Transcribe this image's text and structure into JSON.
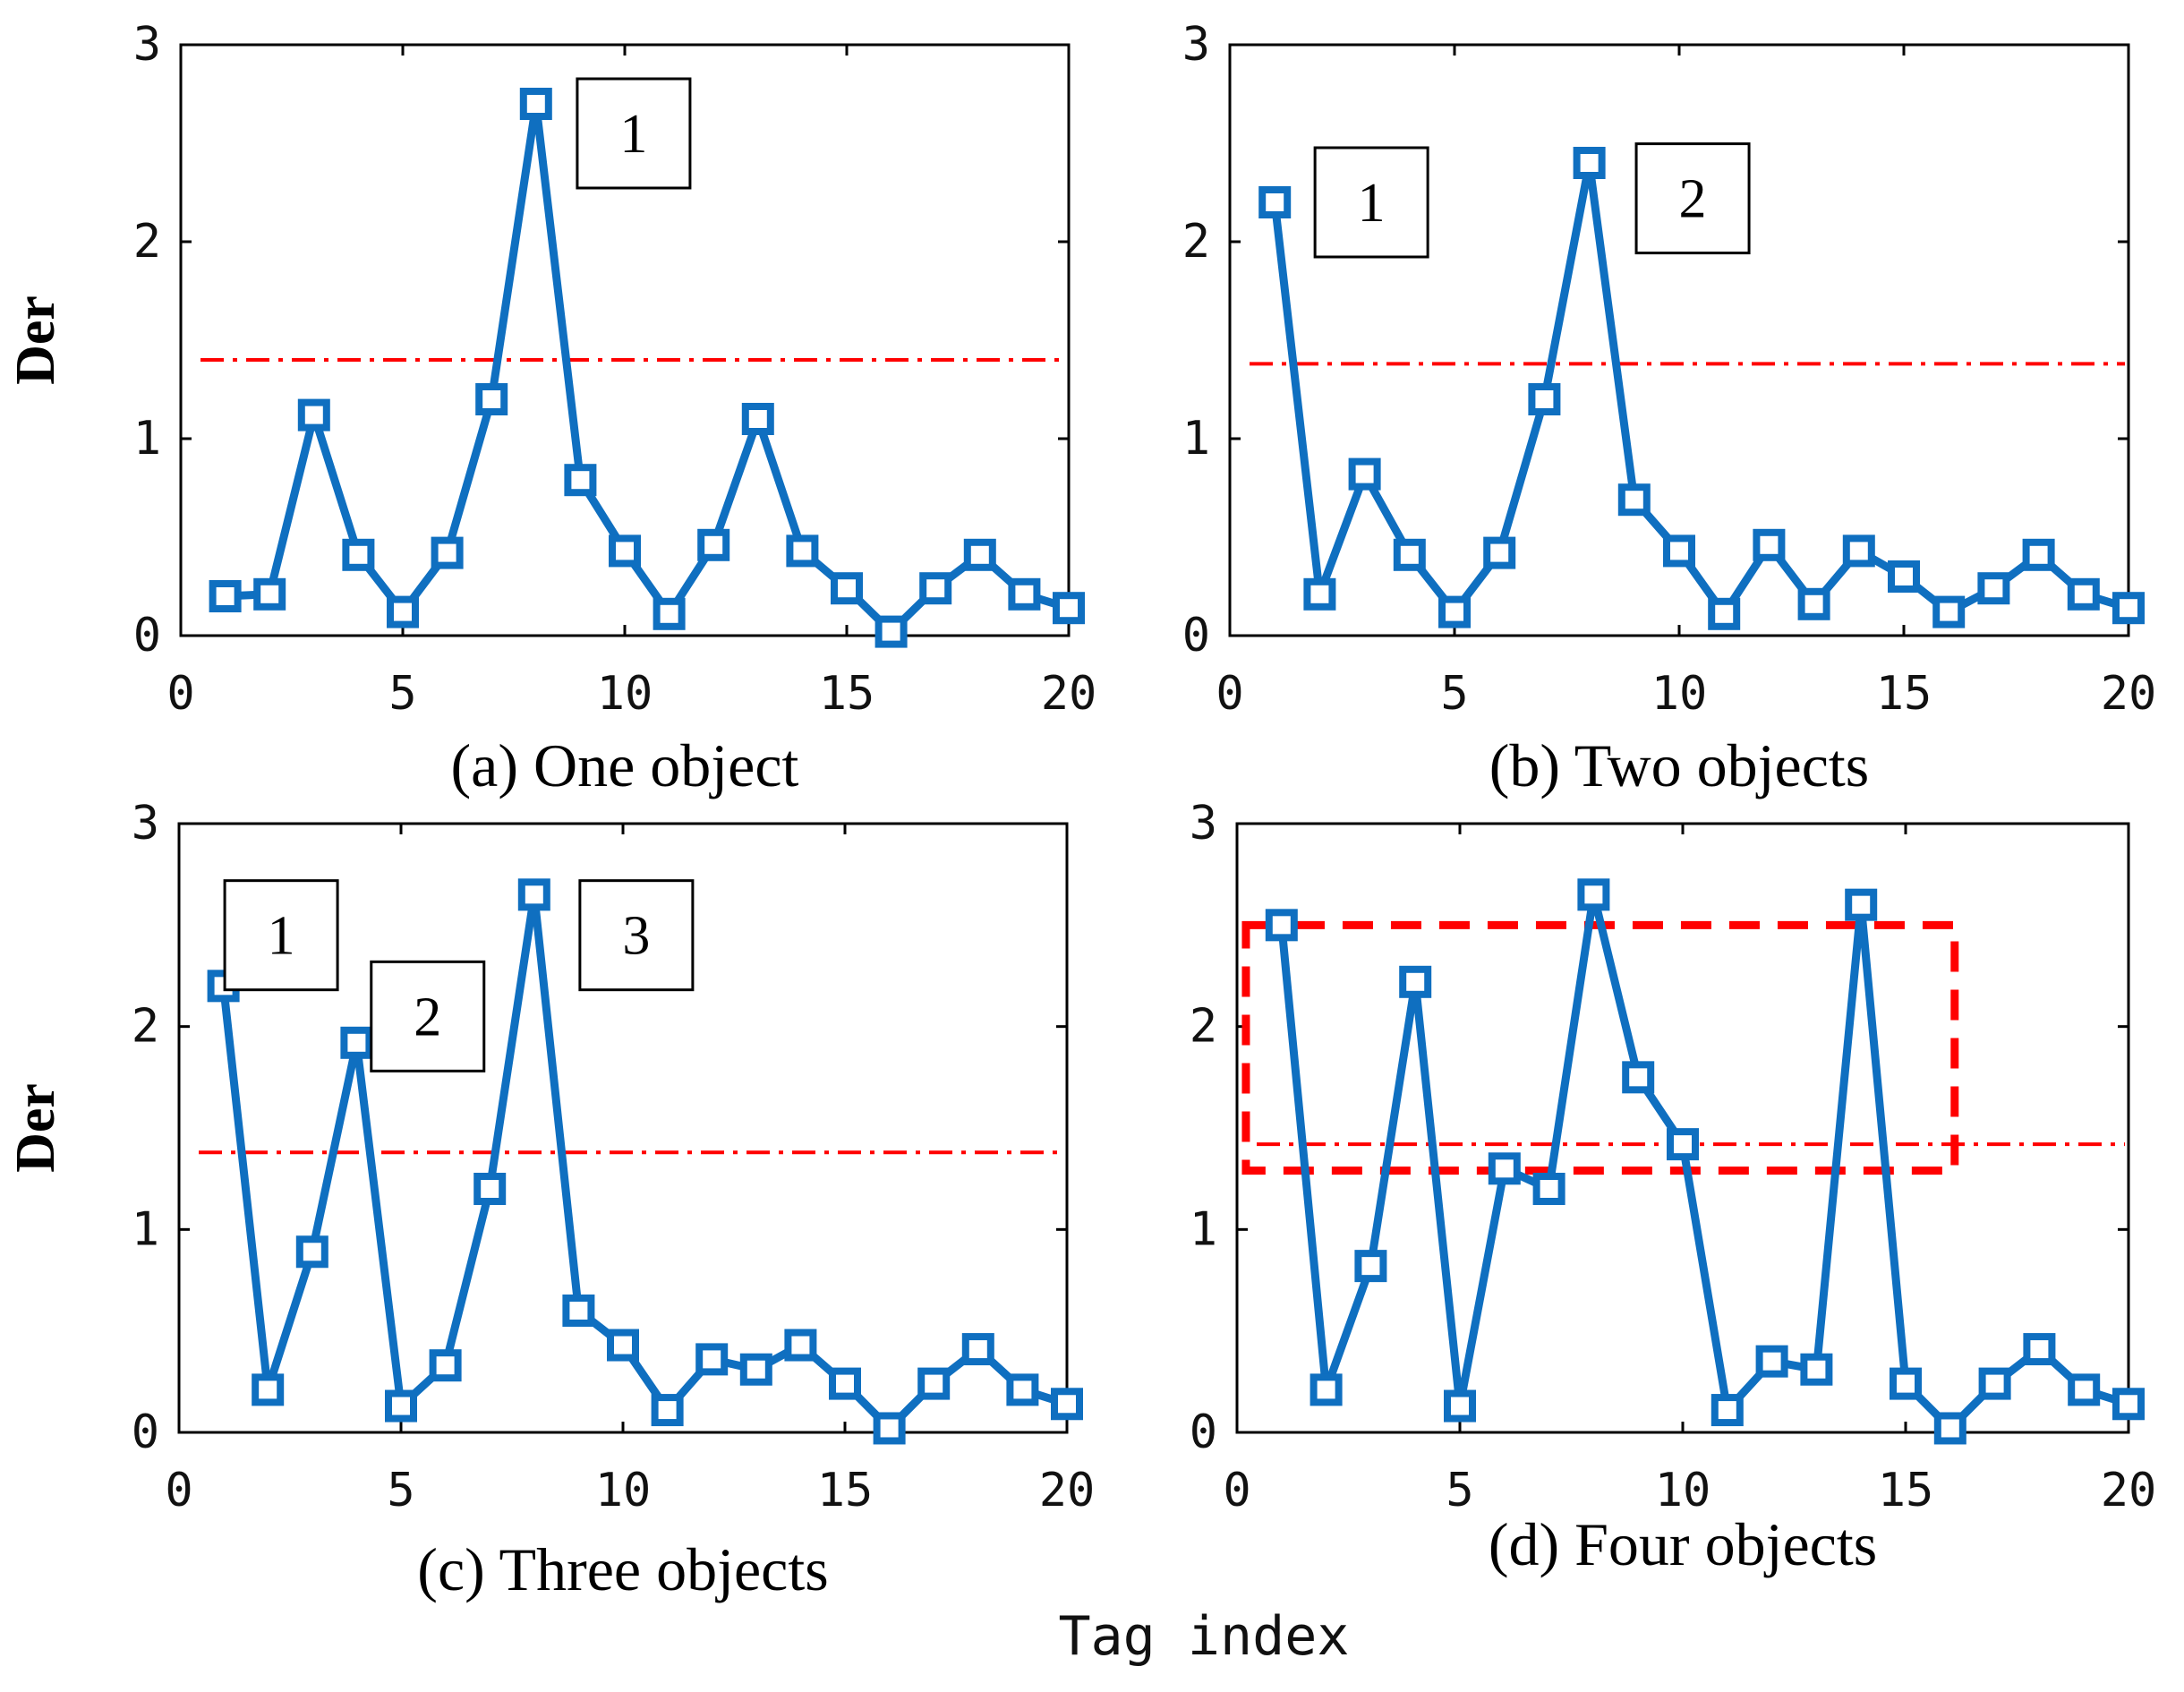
{
  "figure": {
    "xlabel": "Tag index",
    "ylabel": "Der"
  },
  "colors": {
    "series": "#0f6fc0",
    "threshold": "#ff0000",
    "axis": "#000000"
  },
  "chart_data": [
    {
      "type": "line",
      "caption": "(a) One object",
      "xlim": [
        0,
        20
      ],
      "ylim": [
        0,
        3
      ],
      "xticks": [
        0,
        5,
        10,
        15,
        20
      ],
      "yticks": [
        0,
        1,
        2,
        3
      ],
      "ylabel": "Der",
      "x": [
        1,
        2,
        3,
        4,
        5,
        6,
        7,
        8,
        9,
        10,
        11,
        12,
        13,
        14,
        15,
        16,
        17,
        18,
        19,
        20
      ],
      "values": [
        0.2,
        0.21,
        1.12,
        0.41,
        0.12,
        0.42,
        1.2,
        2.7,
        0.79,
        0.43,
        0.11,
        0.46,
        1.1,
        0.43,
        0.24,
        0.02,
        0.24,
        0.41,
        0.21,
        0.14
      ],
      "threshold": 1.4,
      "annotations": [
        {
          "label": "1",
          "x": 10.2,
          "y": 2.55
        }
      ],
      "highlight_box": null
    },
    {
      "type": "line",
      "caption": "(b) Two objects",
      "xlim": [
        0,
        20
      ],
      "ylim": [
        0,
        3
      ],
      "xticks": [
        0,
        5,
        10,
        15,
        20
      ],
      "yticks": [
        0,
        1,
        2,
        3
      ],
      "ylabel": "",
      "x": [
        1,
        2,
        3,
        4,
        5,
        6,
        7,
        8,
        9,
        10,
        11,
        12,
        13,
        14,
        15,
        16,
        17,
        18,
        19,
        20
      ],
      "values": [
        2.2,
        0.21,
        0.82,
        0.41,
        0.12,
        0.42,
        1.2,
        2.4,
        0.69,
        0.43,
        0.11,
        0.46,
        0.16,
        0.43,
        0.3,
        0.12,
        0.24,
        0.41,
        0.21,
        0.14
      ],
      "threshold": 1.38,
      "annotations": [
        {
          "label": "1",
          "x": 3.15,
          "y": 2.2
        },
        {
          "label": "2",
          "x": 10.3,
          "y": 2.22
        }
      ],
      "highlight_box": null
    },
    {
      "type": "line",
      "caption": "(c) Three objects",
      "xlim": [
        0,
        20
      ],
      "ylim": [
        0,
        3
      ],
      "xticks": [
        0,
        5,
        10,
        15,
        20
      ],
      "yticks": [
        0,
        1,
        2,
        3
      ],
      "ylabel": "Der",
      "x": [
        1,
        2,
        3,
        4,
        5,
        6,
        7,
        8,
        9,
        10,
        11,
        12,
        13,
        14,
        15,
        16,
        17,
        18,
        19,
        20
      ],
      "values": [
        2.2,
        0.21,
        0.89,
        1.92,
        0.13,
        0.33,
        1.2,
        2.65,
        0.6,
        0.43,
        0.11,
        0.36,
        0.31,
        0.43,
        0.24,
        0.02,
        0.24,
        0.41,
        0.21,
        0.14
      ],
      "threshold": 1.38,
      "annotations": [
        {
          "label": "1",
          "x": 2.3,
          "y": 2.45
        },
        {
          "label": "2",
          "x": 5.6,
          "y": 2.05
        },
        {
          "label": "3",
          "x": 10.3,
          "y": 2.45
        }
      ],
      "highlight_box": null
    },
    {
      "type": "line",
      "caption": "(d) Four objects",
      "xlim": [
        0,
        20
      ],
      "ylim": [
        0,
        3
      ],
      "xticks": [
        0,
        5,
        10,
        15,
        20
      ],
      "yticks": [
        0,
        1,
        2,
        3
      ],
      "ylabel": "",
      "x": [
        1,
        2,
        3,
        4,
        5,
        6,
        7,
        8,
        9,
        10,
        11,
        12,
        13,
        14,
        15,
        16,
        17,
        18,
        19,
        20
      ],
      "values": [
        2.5,
        0.21,
        0.82,
        2.22,
        0.13,
        1.3,
        1.2,
        2.65,
        1.75,
        1.42,
        0.11,
        0.35,
        0.31,
        2.6,
        0.24,
        0.02,
        0.24,
        0.41,
        0.21,
        0.14
      ],
      "threshold": 1.42,
      "annotations": [],
      "highlight_box": {
        "x0": 0.2,
        "x1": 16.1,
        "y0": 1.29,
        "y1": 2.5
      }
    }
  ]
}
